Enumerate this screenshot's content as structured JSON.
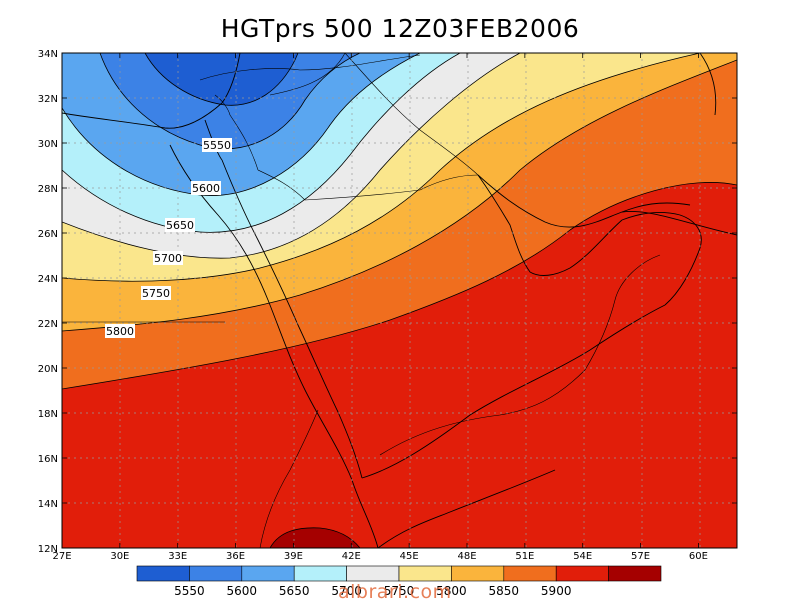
{
  "title": "HGTprs 500 12Z03FEB2006",
  "watermark": "albrari.com",
  "map": {
    "lon_range": [
      27,
      62
    ],
    "lat_range": [
      12,
      34
    ],
    "lon_ticks": [
      27,
      30,
      33,
      36,
      39,
      42,
      45,
      48,
      51,
      54,
      57,
      60
    ],
    "lon_tick_labels": [
      "27E",
      "30E",
      "33E",
      "36E",
      "39E",
      "42E",
      "45E",
      "48E",
      "51E",
      "54E",
      "57E",
      "60E"
    ],
    "lat_ticks": [
      12,
      14,
      16,
      18,
      20,
      22,
      24,
      26,
      28,
      30,
      32,
      34
    ],
    "lat_tick_labels": [
      "12N",
      "14N",
      "16N",
      "18N",
      "20N",
      "22N",
      "24N",
      "26N",
      "28N",
      "30N",
      "32N",
      "34N"
    ],
    "grid": true
  },
  "contour_labels": [
    "5550",
    "5600",
    "5650",
    "5700",
    "5750",
    "5800"
  ],
  "colorbar": {
    "colors": [
      "#1e5ed2",
      "#3c82e6",
      "#5aa6f0",
      "#b4f0fa",
      "#ebebeb",
      "#fae68c",
      "#fab43c",
      "#f06e1e",
      "#e11e0a",
      "#a50000"
    ],
    "labels": [
      "5550",
      "5600",
      "5650",
      "5700",
      "5750",
      "5800",
      "5850",
      "5900"
    ]
  }
}
